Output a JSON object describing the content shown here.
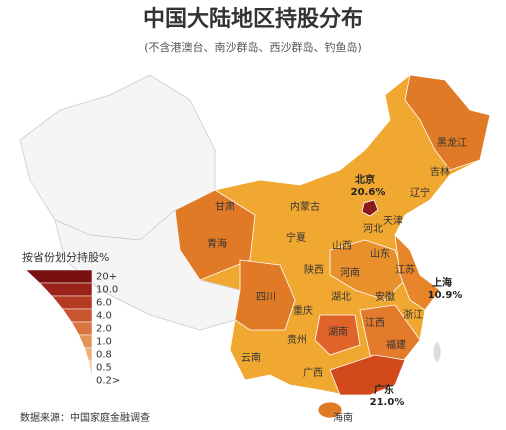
{
  "title": "中国大陆地区持股分布",
  "subtitle": "(不含港澳台、南沙群岛、西沙群岛、钓鱼岛)",
  "legend": {
    "title": "按省份划分持股%",
    "labels": [
      "20+",
      "10.0",
      "6.0",
      "4.0",
      "2.0",
      "1.0",
      "0.8",
      "0.5",
      "0.2>"
    ]
  },
  "provinces": [
    "黑龙江",
    "吉林",
    "辽宁",
    "天津",
    "河北",
    "内蒙古",
    "甘肃",
    "宁夏",
    "青海",
    "山西",
    "山东",
    "陕西",
    "河南",
    "江苏",
    "四川",
    "湖北",
    "安徽",
    "重庆",
    "浙江",
    "贵州",
    "湖南",
    "江西",
    "福建",
    "云南",
    "广西",
    "海南"
  ],
  "callouts": [
    {
      "name": "北京",
      "value": "20.6%"
    },
    {
      "name": "上海",
      "value": "10.9%"
    },
    {
      "name": "广东",
      "value": "21.0%"
    }
  ],
  "source": "数据来源：中国家庭金融调查"
}
